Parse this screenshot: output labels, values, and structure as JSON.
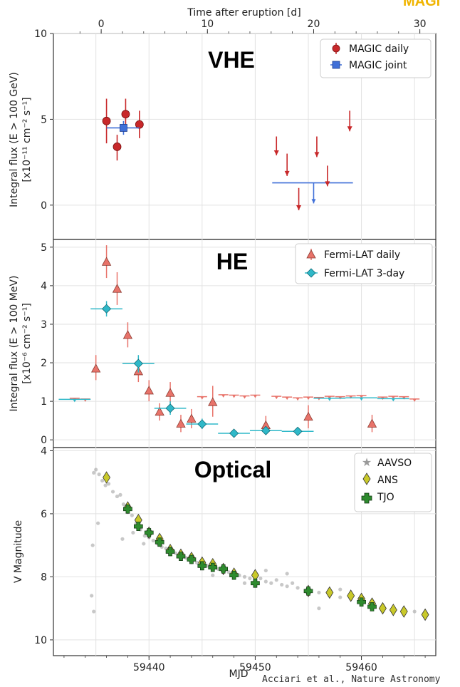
{
  "top_axis": {
    "label": "Time after eruption [d]",
    "ticks": [
      "0",
      "10",
      "20",
      "30"
    ]
  },
  "credit": "Acciari et al., Nature Astronomy",
  "logo_fragment": "MAGI",
  "colors": {
    "magic_daily": "#c8282a",
    "magic_joint": "#3f6fd8",
    "fermi_daily": "#e8736a",
    "fermi_3day": "#2fb8c8",
    "aavso": "#9a9a9a",
    "ans": "#c9c92a",
    "tjo": "#2e8b2e"
  },
  "chart_data": [
    {
      "type": "scatter",
      "title": "VHE",
      "ylabel_line1": "Integral flux (E > 100 GeV)",
      "ylabel_line2": "[x10⁻¹¹ cm⁻² s⁻¹]",
      "ylim": [
        -2,
        10
      ],
      "yticks": [
        "0",
        "5",
        "10"
      ],
      "grid": true,
      "legend": "top-right",
      "series": [
        {
          "name": "MAGIC daily",
          "marker": "circle",
          "points": [
            {
              "x": 59436.0,
              "y": 4.9,
              "ylo": 3.6,
              "yhi": 6.2
            },
            {
              "x": 59437.0,
              "y": 3.4,
              "ylo": 2.6,
              "yhi": 4.1
            },
            {
              "x": 59437.8,
              "y": 5.3,
              "ylo": 4.5,
              "yhi": 6.2
            },
            {
              "x": 59439.1,
              "y": 4.7,
              "ylo": 3.9,
              "yhi": 5.5
            }
          ],
          "upper_limits": [
            {
              "x": 59452.0,
              "y": 4.0,
              "y_end": 2.9
            },
            {
              "x": 59453.0,
              "y": 3.0,
              "y_end": 1.7
            },
            {
              "x": 59454.1,
              "y": 1.0,
              "y_end": -0.3
            },
            {
              "x": 59455.8,
              "y": 4.0,
              "y_end": 2.8
            },
            {
              "x": 59456.8,
              "y": 2.3,
              "y_end": 1.1
            },
            {
              "x": 59458.9,
              "y": 5.5,
              "y_end": 4.3
            }
          ]
        },
        {
          "name": "MAGIC joint",
          "marker": "square",
          "points": [
            {
              "x": 59437.6,
              "y": 4.5,
              "xlo": 59436.0,
              "xhi": 59439.1,
              "ylo": 4.1,
              "yhi": 4.9
            }
          ],
          "upper_limits": [
            {
              "x": 59455.5,
              "y": 1.3,
              "y_end": 0.1,
              "xlo": 59451.6,
              "xhi": 59459.2
            }
          ]
        }
      ]
    },
    {
      "type": "scatter",
      "title": "HE",
      "ylabel_line1": "Integral flux (E > 100 MeV)",
      "ylabel_line2": "[x10⁻⁶ cm⁻² s⁻¹]",
      "ylim": [
        -0.2,
        5.2
      ],
      "yticks": [
        "0",
        "1",
        "2",
        "3",
        "4",
        "5"
      ],
      "grid": true,
      "legend": "top-right",
      "series": [
        {
          "name": "Fermi-LAT daily",
          "marker": "triangle",
          "points": [
            {
              "x": 59435.0,
              "y": 1.85,
              "ylo": 1.55,
              "yhi": 2.2
            },
            {
              "x": 59436.0,
              "y": 4.62,
              "ylo": 4.2,
              "yhi": 5.05
            },
            {
              "x": 59437.0,
              "y": 3.92,
              "ylo": 3.5,
              "yhi": 4.35
            },
            {
              "x": 59438.0,
              "y": 2.72,
              "ylo": 2.4,
              "yhi": 3.05
            },
            {
              "x": 59439.0,
              "y": 1.78,
              "ylo": 1.5,
              "yhi": 2.1
            },
            {
              "x": 59440.0,
              "y": 1.28,
              "ylo": 1.0,
              "yhi": 1.55
            },
            {
              "x": 59441.0,
              "y": 0.73,
              "ylo": 0.5,
              "yhi": 0.95
            },
            {
              "x": 59442.0,
              "y": 1.22,
              "ylo": 0.95,
              "yhi": 1.5
            },
            {
              "x": 59443.0,
              "y": 0.42,
              "ylo": 0.2,
              "yhi": 0.65
            },
            {
              "x": 59444.0,
              "y": 0.55,
              "ylo": 0.3,
              "yhi": 0.8
            },
            {
              "x": 59446.0,
              "y": 0.98,
              "ylo": 0.6,
              "yhi": 1.4
            },
            {
              "x": 59451.0,
              "y": 0.38,
              "ylo": 0.15,
              "yhi": 0.62
            },
            {
              "x": 59455.0,
              "y": 0.6,
              "ylo": 0.3,
              "yhi": 0.9
            },
            {
              "x": 59461.0,
              "y": 0.42,
              "ylo": 0.2,
              "yhi": 0.65
            }
          ],
          "upper_limits": [
            {
              "x": 59433.0,
              "y": 1.08
            },
            {
              "x": 59434.0,
              "y": 1.06
            },
            {
              "x": 59445.0,
              "y": 1.12
            },
            {
              "x": 59447.0,
              "y": 1.17
            },
            {
              "x": 59448.0,
              "y": 1.16
            },
            {
              "x": 59449.0,
              "y": 1.14
            },
            {
              "x": 59450.0,
              "y": 1.16
            },
            {
              "x": 59452.0,
              "y": 1.13
            },
            {
              "x": 59453.0,
              "y": 1.11
            },
            {
              "x": 59454.0,
              "y": 1.09
            },
            {
              "x": 59455.0,
              "y": 1.11
            },
            {
              "x": 59456.0,
              "y": 1.1
            },
            {
              "x": 59457.0,
              "y": 1.13
            },
            {
              "x": 59458.0,
              "y": 1.12
            },
            {
              "x": 59459.0,
              "y": 1.14
            },
            {
              "x": 59460.0,
              "y": 1.15
            },
            {
              "x": 59462.0,
              "y": 1.11
            },
            {
              "x": 59463.0,
              "y": 1.13
            },
            {
              "x": 59464.0,
              "y": 1.12
            },
            {
              "x": 59465.0,
              "y": 1.06
            }
          ]
        },
        {
          "name": "Fermi-LAT 3-day",
          "marker": "diamond",
          "points": [
            {
              "x": 59436.0,
              "y": 3.4,
              "xlo": 59434.5,
              "xhi": 59437.5,
              "ylo": 3.2,
              "yhi": 3.6
            },
            {
              "x": 59439.0,
              "y": 1.98,
              "xlo": 59437.5,
              "xhi": 59440.5,
              "ylo": 1.75,
              "yhi": 2.2
            },
            {
              "x": 59442.0,
              "y": 0.82,
              "xlo": 59440.5,
              "xhi": 59443.5,
              "ylo": 0.65,
              "yhi": 1.0
            },
            {
              "x": 59445.0,
              "y": 0.41,
              "xlo": 59443.5,
              "xhi": 59446.5,
              "ylo": 0.28,
              "yhi": 0.55
            },
            {
              "x": 59448.0,
              "y": 0.17,
              "xlo": 59446.5,
              "xhi": 59449.5,
              "ylo": 0.08,
              "yhi": 0.26
            },
            {
              "x": 59451.0,
              "y": 0.24,
              "xlo": 59449.5,
              "xhi": 59452.5,
              "ylo": 0.14,
              "yhi": 0.34
            },
            {
              "x": 59454.0,
              "y": 0.22,
              "xlo": 59452.5,
              "xhi": 59455.5,
              "ylo": 0.12,
              "yhi": 0.32
            }
          ],
          "upper_limits": [
            {
              "x": 59433.0,
              "y": 1.05,
              "xlo": 59431.5,
              "xhi": 59434.5
            },
            {
              "x": 59457.0,
              "y": 1.08,
              "xlo": 59455.5,
              "xhi": 59458.5
            },
            {
              "x": 59460.0,
              "y": 1.09,
              "xlo": 59458.5,
              "xhi": 59461.5
            },
            {
              "x": 59463.0,
              "y": 1.07,
              "xlo": 59461.5,
              "xhi": 59464.5
            }
          ]
        }
      ]
    },
    {
      "type": "scatter",
      "title": "Optical",
      "ylabel": "V Magnitude",
      "xlabel": "MJD",
      "ylim": [
        10.5,
        3.9
      ],
      "y_inverted": true,
      "xlim": [
        59431,
        59467
      ],
      "xticks": [
        "59440",
        "59450",
        "59460"
      ],
      "yticks": [
        "4",
        "6",
        "8",
        "10"
      ],
      "grid": true,
      "legend": "top-right",
      "series": [
        {
          "name": "AAVSO",
          "marker": "star",
          "points": [
            [
              59434.8,
              4.7
            ],
            [
              59435.0,
              4.6
            ],
            [
              59435.3,
              4.75
            ],
            [
              59435.6,
              4.95
            ],
            [
              59435.9,
              5.1
            ],
            [
              59436.2,
              5.05
            ],
            [
              59436.6,
              5.3
            ],
            [
              59437.0,
              5.45
            ],
            [
              59437.3,
              5.4
            ],
            [
              59437.6,
              5.7
            ],
            [
              59438.0,
              5.95
            ],
            [
              59438.4,
              6.05
            ],
            [
              59438.8,
              6.3
            ],
            [
              59439.2,
              6.5
            ],
            [
              59439.6,
              6.7
            ],
            [
              59440.0,
              6.75
            ],
            [
              59440.4,
              6.85
            ],
            [
              59440.8,
              6.95
            ],
            [
              59441.2,
              7.05
            ],
            [
              59441.6,
              7.1
            ],
            [
              59442.0,
              7.15
            ],
            [
              59442.5,
              7.25
            ],
            [
              59443.0,
              7.35
            ],
            [
              59443.5,
              7.4
            ],
            [
              59444.0,
              7.45
            ],
            [
              59444.5,
              7.55
            ],
            [
              59445.0,
              7.6
            ],
            [
              59445.5,
              7.65
            ],
            [
              59446.0,
              7.7
            ],
            [
              59446.5,
              7.75
            ],
            [
              59447.0,
              7.8
            ],
            [
              59447.5,
              7.85
            ],
            [
              59448.0,
              7.9
            ],
            [
              59448.5,
              7.95
            ],
            [
              59449.0,
              8.0
            ],
            [
              59449.5,
              8.05
            ],
            [
              59450.0,
              8.1
            ],
            [
              59450.5,
              8.05
            ],
            [
              59451.0,
              8.15
            ],
            [
              59451.5,
              8.2
            ],
            [
              59452.0,
              8.1
            ],
            [
              59452.5,
              8.25
            ],
            [
              59453.0,
              8.3
            ],
            [
              59453.5,
              8.2
            ],
            [
              59454.0,
              8.35
            ],
            [
              59455.0,
              8.45
            ],
            [
              59456.0,
              8.5
            ],
            [
              59457.0,
              8.6
            ],
            [
              59458.0,
              8.65
            ],
            [
              59459.0,
              8.7
            ],
            [
              59460.0,
              8.8
            ],
            [
              59461.0,
              8.85
            ],
            [
              59462.0,
              8.95
            ],
            [
              59463.0,
              9.0
            ],
            [
              59464.0,
              9.05
            ],
            [
              59465.0,
              9.1
            ],
            [
              59434.7,
              7.0
            ],
            [
              59434.6,
              8.6
            ],
            [
              59434.8,
              9.1
            ],
            [
              59435.2,
              6.3
            ],
            [
              59456.0,
              9.0
            ],
            [
              59437.5,
              6.8
            ],
            [
              59438.5,
              6.6
            ],
            [
              59439.5,
              6.95
            ],
            [
              59441.0,
              6.8
            ],
            [
              59446.0,
              7.95
            ],
            [
              59449.0,
              8.2
            ],
            [
              59451.0,
              7.8
            ],
            [
              59453.0,
              7.9
            ],
            [
              59458.0,
              8.4
            ]
          ]
        },
        {
          "name": "ANS",
          "marker": "diamond",
          "points": [
            [
              59436.0,
              4.85
            ],
            [
              59438.0,
              5.8
            ],
            [
              59439.0,
              6.2
            ],
            [
              59440.0,
              6.6
            ],
            [
              59441.0,
              6.8
            ],
            [
              59442.0,
              7.15
            ],
            [
              59443.0,
              7.3
            ],
            [
              59444.0,
              7.4
            ],
            [
              59445.0,
              7.55
            ],
            [
              59446.0,
              7.6
            ],
            [
              59447.0,
              7.75
            ],
            [
              59448.0,
              7.9
            ],
            [
              59450.0,
              7.95
            ],
            [
              59455.0,
              8.45
            ],
            [
              59457.0,
              8.5
            ],
            [
              59459.0,
              8.6
            ],
            [
              59460.0,
              8.7
            ],
            [
              59461.0,
              8.85
            ],
            [
              59462.0,
              9.0
            ],
            [
              59463.0,
              9.05
            ],
            [
              59464.0,
              9.1
            ],
            [
              59466.0,
              9.2
            ]
          ]
        },
        {
          "name": "TJO",
          "marker": "plus",
          "points": [
            [
              59438.0,
              5.85
            ],
            [
              59439.0,
              6.4
            ],
            [
              59440.0,
              6.6
            ],
            [
              59441.0,
              6.9
            ],
            [
              59442.0,
              7.2
            ],
            [
              59443.0,
              7.35
            ],
            [
              59444.0,
              7.45
            ],
            [
              59445.0,
              7.65
            ],
            [
              59446.0,
              7.7
            ],
            [
              59447.0,
              7.75
            ],
            [
              59448.0,
              7.95
            ],
            [
              59450.0,
              8.2
            ],
            [
              59455.0,
              8.45
            ],
            [
              59460.0,
              8.8
            ],
            [
              59461.0,
              8.95
            ]
          ]
        }
      ]
    }
  ]
}
